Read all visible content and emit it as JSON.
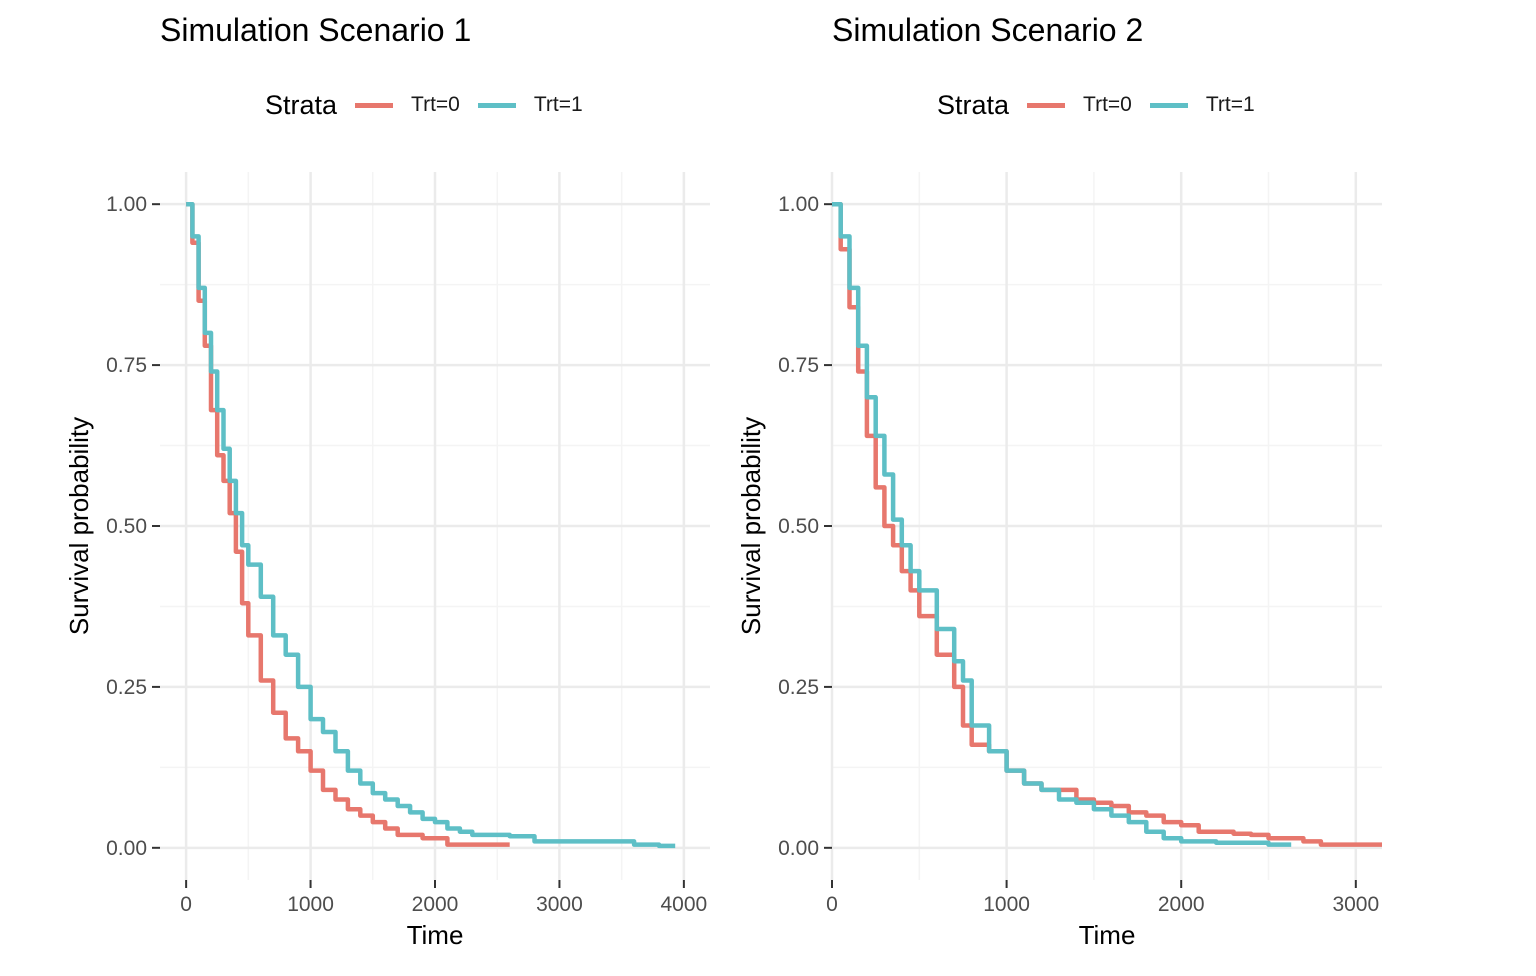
{
  "colors": {
    "trt0": "#E7776D",
    "trt1": "#5EBFC6",
    "grid_major": "#EBEBEB",
    "grid_minor": "#F4F4F4",
    "tick_text": "#4D4D4D"
  },
  "chart_data": [
    {
      "type": "line",
      "title": "Simulation Scenario 1",
      "xlabel": "Time",
      "ylabel": "Survival probability",
      "xlim": [
        -210,
        4210
      ],
      "ylim": [
        -0.05,
        1.05
      ],
      "x_ticks": [
        0,
        1000,
        2000,
        3000,
        4000
      ],
      "x_tick_labels": [
        "0",
        "1000",
        "2000",
        "3000",
        "4000"
      ],
      "y_ticks": [
        0,
        0.25,
        0.5,
        0.75,
        1
      ],
      "y_tick_labels": [
        "0.00",
        "0.25",
        "0.50",
        "0.75",
        "1.00"
      ],
      "grid": true,
      "legend": {
        "title": "Strata",
        "position": "top",
        "entries": [
          "Trt=0",
          "Trt=1"
        ]
      },
      "series": [
        {
          "name": "Trt=0",
          "color": "#E7776D",
          "x": [
            0,
            50,
            100,
            150,
            200,
            250,
            300,
            350,
            400,
            450,
            500,
            600,
            700,
            800,
            900,
            1000,
            1100,
            1200,
            1300,
            1400,
            1500,
            1600,
            1700,
            1800,
            1900,
            2000,
            2100,
            2200,
            2300,
            2400,
            2500,
            2600
          ],
          "y": [
            1.0,
            0.94,
            0.85,
            0.78,
            0.68,
            0.61,
            0.57,
            0.52,
            0.46,
            0.38,
            0.33,
            0.26,
            0.21,
            0.17,
            0.15,
            0.12,
            0.09,
            0.075,
            0.06,
            0.05,
            0.04,
            0.03,
            0.02,
            0.02,
            0.015,
            0.015,
            0.005,
            0.005,
            0.005,
            0.005,
            0.005,
            0.005
          ]
        },
        {
          "name": "Trt=1",
          "color": "#5EBFC6",
          "x": [
            0,
            50,
            100,
            150,
            200,
            250,
            300,
            350,
            400,
            450,
            500,
            600,
            700,
            800,
            900,
            1000,
            1100,
            1200,
            1300,
            1400,
            1500,
            1600,
            1700,
            1800,
            1900,
            2000,
            2100,
            2200,
            2300,
            2400,
            2500,
            2600,
            2700,
            2800,
            2900,
            3000,
            3100,
            3200,
            3300,
            3400,
            3500,
            3600,
            3700,
            3800,
            3900,
            3930
          ],
          "y": [
            1.0,
            0.95,
            0.87,
            0.8,
            0.74,
            0.68,
            0.62,
            0.57,
            0.52,
            0.47,
            0.44,
            0.39,
            0.33,
            0.3,
            0.25,
            0.2,
            0.18,
            0.15,
            0.12,
            0.1,
            0.085,
            0.075,
            0.065,
            0.055,
            0.045,
            0.04,
            0.03,
            0.025,
            0.02,
            0.02,
            0.02,
            0.018,
            0.018,
            0.01,
            0.01,
            0.01,
            0.01,
            0.01,
            0.01,
            0.01,
            0.01,
            0.005,
            0.005,
            0.003,
            0.003,
            0.003
          ]
        }
      ]
    },
    {
      "type": "line",
      "title": "Simulation Scenario 2",
      "xlabel": "Time",
      "ylabel": "Survival probability",
      "xlim": [
        0,
        3150
      ],
      "ylim": [
        -0.05,
        1.05
      ],
      "x_ticks": [
        0,
        1000,
        2000,
        3000
      ],
      "x_tick_labels": [
        "0",
        "1000",
        "2000",
        "3000"
      ],
      "y_ticks": [
        0,
        0.25,
        0.5,
        0.75,
        1
      ],
      "y_tick_labels": [
        "0.00",
        "0.25",
        "0.50",
        "0.75",
        "1.00"
      ],
      "grid": true,
      "legend": {
        "title": "Strata",
        "position": "top",
        "entries": [
          "Trt=0",
          "Trt=1"
        ]
      },
      "series": [
        {
          "name": "Trt=0",
          "color": "#E7776D",
          "x": [
            0,
            50,
            100,
            150,
            200,
            250,
            300,
            350,
            400,
            450,
            500,
            600,
            700,
            750,
            800,
            900,
            1000,
            1100,
            1200,
            1300,
            1400,
            1500,
            1600,
            1700,
            1800,
            1900,
            2000,
            2100,
            2200,
            2300,
            2400,
            2500,
            2600,
            2700,
            2800,
            2900,
            3000,
            3100,
            3150
          ],
          "y": [
            1.0,
            0.93,
            0.84,
            0.74,
            0.64,
            0.56,
            0.5,
            0.47,
            0.43,
            0.4,
            0.36,
            0.3,
            0.25,
            0.19,
            0.16,
            0.15,
            0.12,
            0.1,
            0.09,
            0.09,
            0.075,
            0.07,
            0.065,
            0.055,
            0.05,
            0.04,
            0.035,
            0.025,
            0.025,
            0.022,
            0.02,
            0.015,
            0.015,
            0.01,
            0.005,
            0.005,
            0.005,
            0.005,
            0.005
          ]
        },
        {
          "name": "Trt=1",
          "color": "#5EBFC6",
          "x": [
            0,
            50,
            100,
            150,
            200,
            250,
            300,
            350,
            400,
            450,
            500,
            600,
            700,
            750,
            800,
            900,
            1000,
            1100,
            1200,
            1300,
            1400,
            1500,
            1600,
            1700,
            1800,
            1900,
            2000,
            2100,
            2200,
            2300,
            2400,
            2500,
            2600,
            2630
          ],
          "y": [
            1.0,
            0.95,
            0.87,
            0.78,
            0.7,
            0.64,
            0.58,
            0.51,
            0.47,
            0.43,
            0.4,
            0.34,
            0.29,
            0.26,
            0.19,
            0.15,
            0.12,
            0.1,
            0.09,
            0.075,
            0.07,
            0.06,
            0.05,
            0.04,
            0.025,
            0.015,
            0.01,
            0.01,
            0.008,
            0.008,
            0.008,
            0.005,
            0.005,
            0.005
          ]
        }
      ]
    }
  ]
}
